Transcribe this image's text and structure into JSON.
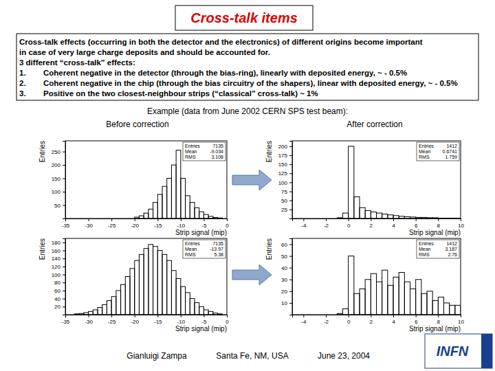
{
  "title": "Cross-talk items",
  "intro": [
    "Cross-talk effects (occurring in both the detector and the electronics) of different origins become important",
    "in case of very large charge deposits and should be accounted for."
  ],
  "effects_heading": "3 different “cross-talk” effects:",
  "effects": [
    {
      "number": "1.",
      "text": "Coherent negative in the detector (through the bias-ring), linearly with deposited energy, ~ - 0.5%"
    },
    {
      "number": "2.",
      "text": "Coherent negative in the chip (through the bias circuitry of the shapers), linear with deposited energy,  ~ - 0.5%"
    },
    {
      "number": "3.",
      "text": "Positive on the two closest-neighbour strips (“classical” cross-talk) ~ 1%"
    }
  ],
  "example_caption": "Example (data from June 2002 CERN SPS test beam):",
  "before_label": "Before correction",
  "after_label": "After correction",
  "footer": [
    "Gianluigi Zampa",
    "Santa Fe, NM, USA",
    "June 23, 2004"
  ],
  "logo": "INFN",
  "chart_data": [
    {
      "type": "histogram",
      "x_label": "Strip signal (mip)",
      "y_label": "Entries",
      "color": "#000000",
      "bins": [
        -35,
        -34,
        -33,
        -32,
        -31,
        -30,
        -29,
        -28,
        -27,
        -26,
        -25,
        -24,
        -23,
        -22,
        -21,
        -20,
        -19,
        -18,
        -17,
        -16,
        -15,
        -14,
        -13,
        -12,
        -11,
        -10,
        -9,
        -8,
        -7,
        -6,
        -5,
        -4,
        -3,
        -2,
        -1,
        0
      ],
      "counts": [
        0,
        0,
        0,
        0,
        0,
        0,
        0,
        0,
        0,
        0,
        0,
        0,
        0,
        0,
        0,
        5,
        10,
        20,
        35,
        60,
        90,
        120,
        150,
        200,
        255,
        150,
        85,
        60,
        40,
        25,
        15,
        8,
        4,
        2,
        0
      ],
      "xlim": [
        -35,
        0
      ],
      "xticks": [
        -35,
        -30,
        -25,
        -20,
        -15,
        -10,
        -5,
        0
      ],
      "ylim": [
        0,
        290
      ],
      "yticks": [
        50,
        100,
        150,
        200,
        250
      ],
      "stats": [
        {
          "label": "Entries",
          "value": 7135
        },
        {
          "label": "Mean",
          "value": -9.034
        },
        {
          "label": "RMS",
          "value": 3.108
        }
      ]
    },
    {
      "type": "histogram",
      "x_label": "Strip signal (mip)",
      "y_label": "Entries",
      "color": "#000000",
      "bins": [
        -5,
        -4.5,
        -4,
        -3.5,
        -3,
        -2.5,
        -2,
        -1.5,
        -1,
        -0.5,
        0,
        0.5,
        1,
        1.5,
        2,
        2.5,
        3,
        3.5,
        4,
        4.5,
        5,
        5.5,
        6,
        6.5,
        7,
        7.5,
        8,
        8.5,
        9,
        9.5,
        10
      ],
      "counts": [
        0,
        0,
        0,
        0,
        0,
        0,
        0,
        0,
        2,
        15,
        200,
        60,
        30,
        22,
        18,
        15,
        12,
        10,
        8,
        6,
        5,
        4,
        3,
        3,
        2,
        2,
        1,
        1,
        1,
        1
      ],
      "xlim": [
        -5,
        10
      ],
      "xticks": [
        -4,
        -2,
        0,
        2,
        4,
        6,
        8,
        10
      ],
      "ylim": [
        0,
        215
      ],
      "yticks": [
        25,
        50,
        75,
        100,
        125,
        150,
        175,
        200
      ],
      "stats": [
        {
          "label": "Entries",
          "value": 1412
        },
        {
          "label": "Mean",
          "value": 0.6741
        },
        {
          "label": "RMS",
          "value": 1.759
        }
      ]
    },
    {
      "type": "histogram",
      "x_label": "Strip signal (mip)",
      "y_label": "Entries",
      "color": "#000000",
      "bins": [
        -35,
        -34,
        -33,
        -32,
        -31,
        -30,
        -29,
        -28,
        -27,
        -26,
        -25,
        -24,
        -23,
        -22,
        -21,
        -20,
        -19,
        -18,
        -17,
        -16,
        -15,
        -14,
        -13,
        -12,
        -11,
        -10,
        -9,
        -8,
        -7,
        -6,
        -5,
        -4,
        -3,
        -2,
        -1,
        0
      ],
      "counts": [
        0,
        0,
        2,
        3,
        5,
        8,
        12,
        18,
        25,
        35,
        45,
        60,
        75,
        95,
        115,
        135,
        150,
        165,
        175,
        170,
        160,
        150,
        135,
        110,
        90,
        70,
        55,
        40,
        30,
        20,
        12,
        8,
        4,
        2,
        0
      ],
      "xlim": [
        -35,
        0
      ],
      "xticks": [
        -35,
        -30,
        -25,
        -20,
        -15,
        -10,
        -5,
        0
      ],
      "ylim": [
        0,
        190
      ],
      "yticks": [
        20,
        40,
        60,
        80,
        100,
        120,
        140,
        160,
        180
      ],
      "stats": [
        {
          "label": "Entries",
          "value": 7135
        },
        {
          "label": "Mean",
          "value": -13.97
        },
        {
          "label": "RMS",
          "value": 5.38
        }
      ]
    },
    {
      "type": "histogram",
      "x_label": "Strip signal (mip)",
      "y_label": "Entries",
      "color": "#000000",
      "bins": [
        -5,
        -4.5,
        -4,
        -3.5,
        -3,
        -2.5,
        -2,
        -1.5,
        -1,
        -0.5,
        0,
        0.5,
        1,
        1.5,
        2,
        2.5,
        3,
        3.5,
        4,
        4.5,
        5,
        5.5,
        6,
        6.5,
        7,
        7.5,
        8,
        8.5,
        9,
        9.5,
        10
      ],
      "counts": [
        0,
        0,
        0,
        0,
        0,
        0,
        0,
        0,
        1,
        5,
        50,
        18,
        22,
        30,
        35,
        28,
        38,
        25,
        32,
        36,
        28,
        22,
        30,
        18,
        20,
        12,
        15,
        10,
        8,
        8
      ],
      "xlim": [
        -5,
        10
      ],
      "xticks": [
        -4,
        -2,
        0,
        2,
        4,
        6,
        8,
        10
      ],
      "ylim": [
        0,
        65
      ],
      "yticks": [
        10,
        20,
        30,
        40,
        50,
        60
      ],
      "stats": [
        {
          "label": "Entries",
          "value": 1412
        },
        {
          "label": "Mean",
          "value": 3.187
        },
        {
          "label": "RMS",
          "value": 2.76
        }
      ]
    }
  ]
}
